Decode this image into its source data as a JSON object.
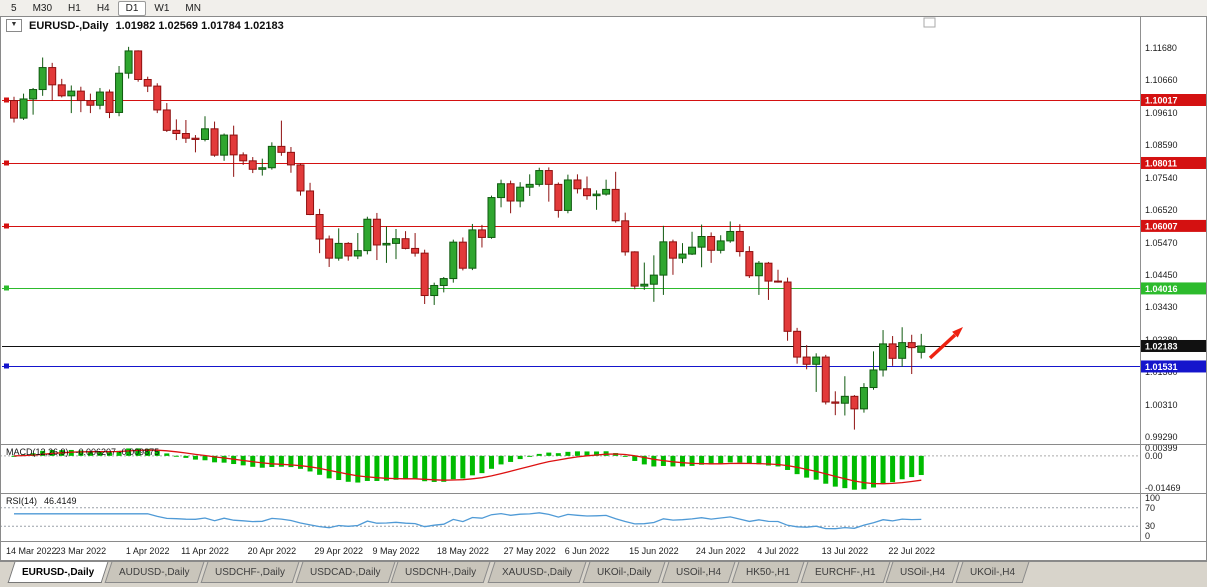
{
  "toolbar": {
    "timeframes": [
      {
        "label": "5",
        "active": false
      },
      {
        "label": "M30",
        "active": false
      },
      {
        "label": "H1",
        "active": false
      },
      {
        "label": "H4",
        "active": false
      },
      {
        "label": "D1",
        "active": true
      },
      {
        "label": "W1",
        "active": false
      },
      {
        "label": "MN",
        "active": false
      }
    ]
  },
  "chart": {
    "header": {
      "symbol": "EURUSD-,Daily",
      "ohlc_text": "1.01982 1.02569 1.01784 1.02183"
    },
    "colors": {
      "up_fill": "#2fa62f",
      "up_stroke": "#0f5a0f",
      "down_fill": "#e23a3a",
      "down_stroke": "#8f1010",
      "axis_text": "#1b1b1b",
      "separator": "#8a8a8a",
      "arrow": "#ee2211"
    },
    "price_axis": [
      "1.11680",
      "1.10660",
      "1.09610",
      "1.08590",
      "1.07540",
      "1.06520",
      "1.05470",
      "1.04450",
      "1.03430",
      "1.02380",
      "1.01360",
      "1.00310",
      "0.99290"
    ],
    "hlines": [
      {
        "price": 1.10017,
        "label": "1.10017",
        "color": "#d41111",
        "marker": true
      },
      {
        "price": 1.08011,
        "label": "1.08011",
        "color": "#d41111",
        "marker": true
      },
      {
        "price": 1.06007,
        "label": "1.06007",
        "color": "#d41111",
        "marker": true
      },
      {
        "price": 1.04016,
        "label": "1.04016",
        "color": "#2dbb2d",
        "marker": true
      },
      {
        "price": 1.02183,
        "label": "1.02183",
        "color": "#111111",
        "marker": false
      },
      {
        "price": 1.01531,
        "label": "1.01531",
        "color": "#1515cc",
        "marker": true
      }
    ],
    "date_labels": [
      "14 Mar 2022",
      "23 Mar 2022",
      "1 Apr 2022",
      "11 Apr 2022",
      "20 Apr 2022",
      "29 Apr 2022",
      "9 May 2022",
      "18 May 2022",
      "27 May 2022",
      "6 Jun 2022",
      "15 Jun 2022",
      "24 Jun 2022",
      "4 Jul 2022",
      "13 Jul 2022",
      "22 Jul 2022"
    ],
    "candles": [
      [
        "14 Mar 2022",
        1.1,
        1.1012,
        1.093,
        1.0944
      ],
      [
        "15 Mar 2022",
        1.0944,
        1.1022,
        1.0938,
        1.1005
      ],
      [
        "16 Mar 2022",
        1.1005,
        1.104,
        1.0955,
        1.1035
      ],
      [
        "17 Mar 2022",
        1.1035,
        1.1137,
        1.1015,
        1.1105
      ],
      [
        "18 Mar 2022",
        1.1105,
        1.112,
        1.1,
        1.105
      ],
      [
        "21 Mar 2022",
        1.105,
        1.1069,
        1.101,
        1.1015
      ],
      [
        "22 Mar 2022",
        1.1015,
        1.1048,
        1.096,
        1.103
      ],
      [
        "23 Mar 2022",
        1.103,
        1.1044,
        1.0963,
        1.1
      ],
      [
        "24 Mar 2022",
        1.1,
        1.1022,
        1.096,
        1.0985
      ],
      [
        "25 Mar 2022",
        1.0985,
        1.104,
        1.0972,
        1.1027
      ],
      [
        "28 Mar 2022",
        1.1027,
        1.1035,
        1.0944,
        1.0962
      ],
      [
        "29 Mar 2022",
        1.0962,
        1.111,
        1.095,
        1.1087
      ],
      [
        "30 Mar 2022",
        1.1087,
        1.1171,
        1.107,
        1.1158
      ],
      [
        "31 Mar 2022",
        1.1158,
        1.116,
        1.106,
        1.1067
      ],
      [
        "1 Apr 2022",
        1.1067,
        1.1076,
        1.1027,
        1.1046
      ],
      [
        "4 Apr 2022",
        1.1046,
        1.1055,
        1.096,
        1.097
      ],
      [
        "5 Apr 2022",
        1.097,
        1.0992,
        1.09,
        1.0905
      ],
      [
        "6 Apr 2022",
        1.0905,
        1.094,
        1.0874,
        1.0895
      ],
      [
        "7 Apr 2022",
        1.0895,
        1.0938,
        1.0865,
        1.088
      ],
      [
        "8 Apr 2022",
        1.088,
        1.089,
        1.0835,
        1.0876
      ],
      [
        "11 Apr 2022",
        1.0876,
        1.095,
        1.087,
        1.091
      ],
      [
        "12 Apr 2022",
        1.091,
        1.0933,
        1.0821,
        1.0826
      ],
      [
        "13 Apr 2022",
        1.0826,
        1.0895,
        1.0808,
        1.089
      ],
      [
        "14 Apr 2022",
        1.089,
        1.092,
        1.0757,
        1.0827
      ],
      [
        "15 Apr 2022",
        1.0827,
        1.0835,
        1.0795,
        1.0808
      ],
      [
        "18 Apr 2022",
        1.0808,
        1.082,
        1.0769,
        1.0781
      ],
      [
        "19 Apr 2022",
        1.0781,
        1.0815,
        1.0761,
        1.0786
      ],
      [
        "20 Apr 2022",
        1.0786,
        1.0867,
        1.078,
        1.0854
      ],
      [
        "21 Apr 2022",
        1.0854,
        1.0936,
        1.0824,
        1.0835
      ],
      [
        "22 Apr 2022",
        1.0835,
        1.0852,
        1.077,
        1.0795
      ],
      [
        "25 Apr 2022",
        1.0795,
        1.08,
        1.0697,
        1.0712
      ],
      [
        "26 Apr 2022",
        1.0712,
        1.0738,
        1.0635,
        1.0637
      ],
      [
        "27 Apr 2022",
        1.0637,
        1.0655,
        1.0514,
        1.0559
      ],
      [
        "28 Apr 2022",
        1.0559,
        1.057,
        1.047,
        1.0498
      ],
      [
        "29 Apr 2022",
        1.0498,
        1.0593,
        1.049,
        1.0545
      ],
      [
        "2 May 2022",
        1.0545,
        1.0549,
        1.049,
        1.0505
      ],
      [
        "3 May 2022",
        1.0505,
        1.0578,
        1.0495,
        1.0522
      ],
      [
        "4 May 2022",
        1.0522,
        1.063,
        1.051,
        1.0622
      ],
      [
        "5 May 2022",
        1.0622,
        1.0642,
        1.0492,
        1.054
      ],
      [
        "6 May 2022",
        1.054,
        1.0599,
        1.0483,
        1.0545
      ],
      [
        "9 May 2022",
        1.0545,
        1.0591,
        1.0495,
        1.056
      ],
      [
        "10 May 2022",
        1.056,
        1.0584,
        1.0526,
        1.0529
      ],
      [
        "11 May 2022",
        1.0529,
        1.0578,
        1.0503,
        1.0514
      ],
      [
        "12 May 2022",
        1.0514,
        1.0525,
        1.0352,
        1.0379
      ],
      [
        "13 May 2022",
        1.0379,
        1.042,
        1.0349,
        1.0411
      ],
      [
        "16 May 2022",
        1.0411,
        1.0438,
        1.0389,
        1.0433
      ],
      [
        "17 May 2022",
        1.0433,
        1.0557,
        1.042,
        1.0549
      ],
      [
        "18 May 2022",
        1.0549,
        1.0564,
        1.0459,
        1.0466
      ],
      [
        "19 May 2022",
        1.0466,
        1.0607,
        1.046,
        1.0588
      ],
      [
        "20 May 2022",
        1.0588,
        1.0604,
        1.0532,
        1.0564
      ],
      [
        "23 May 2022",
        1.0564,
        1.0697,
        1.056,
        1.0691
      ],
      [
        "24 May 2022",
        1.0691,
        1.0748,
        1.066,
        1.0735
      ],
      [
        "25 May 2022",
        1.0735,
        1.0745,
        1.0641,
        1.068
      ],
      [
        "26 May 2022",
        1.068,
        1.074,
        1.066,
        1.0724
      ],
      [
        "27 May 2022",
        1.0724,
        1.0765,
        1.0696,
        1.0733
      ],
      [
        "30 May 2022",
        1.0733,
        1.0786,
        1.0726,
        1.0777
      ],
      [
        "31 May 2022",
        1.0777,
        1.0787,
        1.0678,
        1.0733
      ],
      [
        "1 Jun 2022",
        1.0733,
        1.0739,
        1.0627,
        1.065
      ],
      [
        "2 Jun 2022",
        1.065,
        1.0764,
        1.0641,
        1.0747
      ],
      [
        "3 Jun 2022",
        1.0747,
        1.0765,
        1.0704,
        1.0719
      ],
      [
        "6 Jun 2022",
        1.0719,
        1.0758,
        1.0684,
        1.0697
      ],
      [
        "7 Jun 2022",
        1.0697,
        1.0714,
        1.0652,
        1.0702
      ],
      [
        "8 Jun 2022",
        1.0702,
        1.0748,
        1.0697,
        1.0717
      ],
      [
        "9 Jun 2022",
        1.0717,
        1.0773,
        1.0611,
        1.0617
      ],
      [
        "10 Jun 2022",
        1.0617,
        1.0643,
        1.0506,
        1.0518
      ],
      [
        "13 Jun 2022",
        1.0518,
        1.052,
        1.0399,
        1.0409
      ],
      [
        "14 Jun 2022",
        1.0409,
        1.0484,
        1.0397,
        1.0415
      ],
      [
        "15 Jun 2022",
        1.0415,
        1.0507,
        1.0359,
        1.0444
      ],
      [
        "16 Jun 2022",
        1.0444,
        1.0601,
        1.0381,
        1.055
      ],
      [
        "17 Jun 2022",
        1.055,
        1.0557,
        1.0445,
        1.0498
      ],
      [
        "20 Jun 2022",
        1.0498,
        1.0546,
        1.0482,
        1.0511
      ],
      [
        "21 Jun 2022",
        1.0511,
        1.0582,
        1.0508,
        1.0533
      ],
      [
        "22 Jun 2022",
        1.0533,
        1.0605,
        1.0469,
        1.0567
      ],
      [
        "23 Jun 2022",
        1.0567,
        1.058,
        1.0483,
        1.0523
      ],
      [
        "24 Jun 2022",
        1.0523,
        1.0571,
        1.0513,
        1.0553
      ],
      [
        "27 Jun 2022",
        1.0553,
        1.0615,
        1.0547,
        1.0583
      ],
      [
        "28 Jun 2022",
        1.0583,
        1.0606,
        1.0503,
        1.0519
      ],
      [
        "29 Jun 2022",
        1.0519,
        1.0536,
        1.0435,
        1.0442
      ],
      [
        "30 Jun 2022",
        1.0442,
        1.0489,
        1.0381,
        1.0482
      ],
      [
        "1 Jul 2022",
        1.0482,
        1.0486,
        1.0365,
        1.0425
      ],
      [
        "4 Jul 2022",
        1.0425,
        1.0461,
        1.042,
        1.0422
      ],
      [
        "5 Jul 2022",
        1.0422,
        1.0436,
        1.0235,
        1.0265
      ],
      [
        "6 Jul 2022",
        1.0265,
        1.0276,
        1.0162,
        1.0183
      ],
      [
        "7 Jul 2022",
        1.0183,
        1.0221,
        1.0144,
        1.016
      ],
      [
        "8 Jul 2022",
        1.016,
        1.0195,
        1.0072,
        1.0183
      ],
      [
        "11 Jul 2022",
        1.0183,
        1.019,
        1.0032,
        1.004
      ],
      [
        "12 Jul 2022",
        1.004,
        1.0074,
        0.9998,
        1.0036
      ],
      [
        "13 Jul 2022",
        1.0036,
        1.0122,
        0.9997,
        1.0058
      ],
      [
        "14 Jul 2022",
        1.0058,
        1.0062,
        0.9952,
        1.0018
      ],
      [
        "15 Jul 2022",
        1.0018,
        1.01,
        1.0006,
        1.0086
      ],
      [
        "18 Jul 2022",
        1.0086,
        1.0201,
        1.0079,
        1.0142
      ],
      [
        "19 Jul 2022",
        1.0142,
        1.0269,
        1.0121,
        1.0225
      ],
      [
        "20 Jul 2022",
        1.0225,
        1.025,
        1.0155,
        1.0179
      ],
      [
        "21 Jul 2022",
        1.0179,
        1.0278,
        1.0152,
        1.0229
      ],
      [
        "22 Jul 2022",
        1.0229,
        1.0254,
        1.0129,
        1.0213
      ],
      [
        "25 Jul 2022",
        1.01982,
        1.02569,
        1.01784,
        1.02183
      ]
    ]
  },
  "macd": {
    "label": "MACD(12,26,9)",
    "values": "-0.006207 -0.009875",
    "hist_color": "#00bb00",
    "signal_color": "#dd1111",
    "axis": [
      {
        "text": "0.00399",
        "value": 0.00399
      },
      {
        "text": "0.00",
        "value": 0
      },
      {
        "text": "-0.01469",
        "value": -0.01469
      }
    ]
  },
  "rsi": {
    "label": "RSI(14)",
    "value": "46.4149",
    "line_color": "#4f9ad6",
    "level_color": "#9aa0a8",
    "levels": [
      70,
      30
    ],
    "axis": [
      {
        "text": "100",
        "value": 100
      },
      {
        "text": "70",
        "value": 70
      },
      {
        "text": "30",
        "value": 30
      },
      {
        "text": "0",
        "value": 0
      }
    ]
  },
  "tabs": [
    {
      "label": "EURUSD-,Daily",
      "active": true
    },
    {
      "label": "AUDUSD-,Daily",
      "active": false
    },
    {
      "label": "USDCHF-,Daily",
      "active": false
    },
    {
      "label": "USDCAD-,Daily",
      "active": false
    },
    {
      "label": "USDCNH-,Daily",
      "active": false
    },
    {
      "label": "XAUUSD-,Daily",
      "active": false
    },
    {
      "label": "UKOil-,Daily",
      "active": false
    },
    {
      "label": "USOil-,H4",
      "active": false
    },
    {
      "label": "HK50-,H1",
      "active": false
    },
    {
      "label": "EURCHF-,H1",
      "active": false
    },
    {
      "label": "USOil-,H4",
      "active": false
    },
    {
      "label": "UKOil-,H4",
      "active": false
    }
  ]
}
